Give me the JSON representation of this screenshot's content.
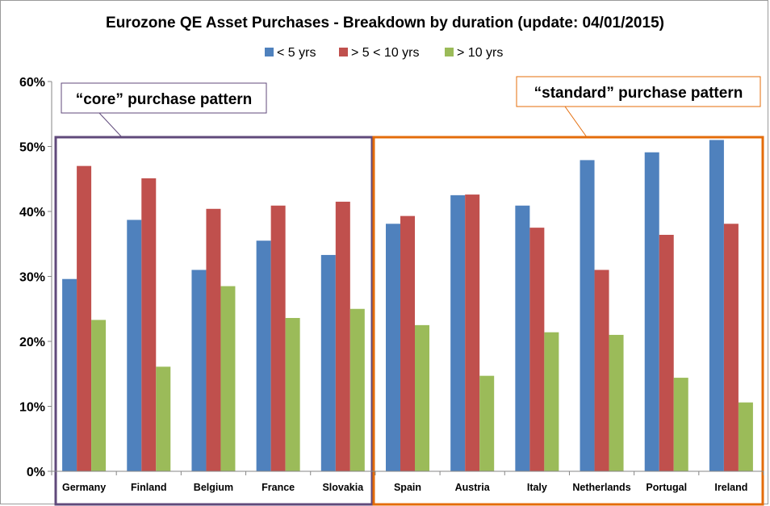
{
  "chart_data": {
    "type": "bar",
    "title": "Eurozone QE Asset Purchases - Breakdown by duration (update: 04/01/2015)",
    "categories": [
      "Germany",
      "Finland",
      "Belgium",
      "France",
      "Slovakia",
      "Spain",
      "Austria",
      "Italy",
      "Netherlands",
      "Portugal",
      "Ireland"
    ],
    "series": [
      {
        "name": "< 5 yrs",
        "color": "#4f81bd",
        "values": [
          29.6,
          38.7,
          31.0,
          35.5,
          33.3,
          38.1,
          42.5,
          40.9,
          47.9,
          49.1,
          51.0
        ]
      },
      {
        "name": "> 5 < 10 yrs",
        "color": "#c0504d",
        "values": [
          47.0,
          45.1,
          40.4,
          40.9,
          41.5,
          39.3,
          42.6,
          37.5,
          31.0,
          36.4,
          38.1
        ]
      },
      {
        "name": "> 10 yrs",
        "color": "#9bbb59",
        "values": [
          23.3,
          16.1,
          28.5,
          23.6,
          25.0,
          22.5,
          14.7,
          21.4,
          21.0,
          14.4,
          10.6
        ]
      }
    ],
    "y_ticks": [
      "0%",
      "10%",
      "20%",
      "30%",
      "40%",
      "50%",
      "60%"
    ],
    "ylim": [
      0,
      60
    ],
    "grid": false,
    "legend_position": "top",
    "groups": [
      {
        "label": "“core” purchase pattern",
        "color": "#604a7b",
        "categories": [
          "Germany",
          "Finland",
          "Belgium",
          "France",
          "Slovakia"
        ]
      },
      {
        "label": "“standard” purchase pattern",
        "color": "#e46c0a",
        "categories": [
          "Spain",
          "Austria",
          "Italy",
          "Netherlands",
          "Portugal",
          "Ireland"
        ]
      }
    ]
  }
}
